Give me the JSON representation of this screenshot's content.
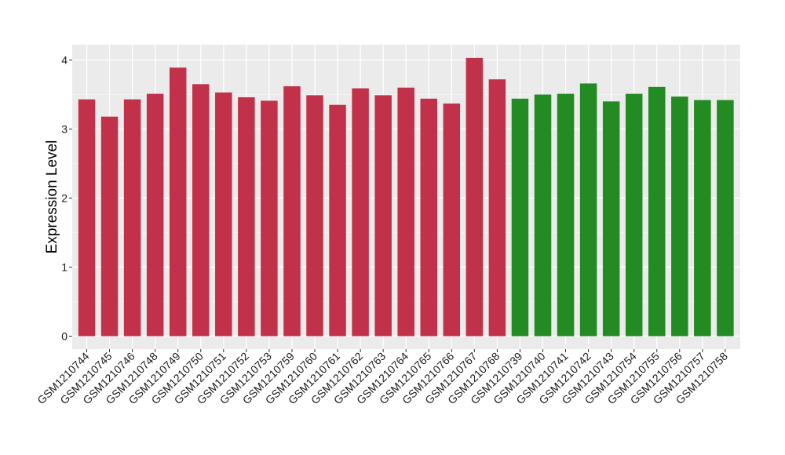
{
  "chart_data": {
    "type": "bar",
    "title": "",
    "xlabel": "",
    "ylabel": "Expression Level",
    "ylim": [
      0,
      4.2
    ],
    "yticks": [
      0,
      1,
      2,
      3,
      4
    ],
    "grid": true,
    "panel_background": "#ebebeb",
    "categories": [
      "GSM1210744",
      "GSM1210745",
      "GSM1210746",
      "GSM1210748",
      "GSM1210749",
      "GSM1210750",
      "GSM1210751",
      "GSM1210752",
      "GSM1210753",
      "GSM1210759",
      "GSM1210760",
      "GSM1210761",
      "GSM1210762",
      "GSM1210763",
      "GSM1210764",
      "GSM1210765",
      "GSM1210766",
      "GSM1210767",
      "GSM1210768",
      "GSM1210739",
      "GSM1210740",
      "GSM1210741",
      "GSM1210742",
      "GSM1210743",
      "GSM1210754",
      "GSM1210755",
      "GSM1210756",
      "GSM1210757",
      "GSM1210758"
    ],
    "values": [
      3.43,
      3.18,
      3.43,
      3.51,
      3.89,
      3.65,
      3.53,
      3.46,
      3.41,
      3.62,
      3.49,
      3.35,
      3.59,
      3.49,
      3.6,
      3.44,
      3.37,
      4.03,
      3.72,
      3.44,
      3.5,
      3.51,
      3.66,
      3.4,
      3.51,
      3.61,
      3.47,
      3.42,
      3.42
    ],
    "groups": [
      {
        "color": "#c2314a",
        "count": 19
      },
      {
        "color": "#228b22",
        "count": 10
      }
    ]
  }
}
